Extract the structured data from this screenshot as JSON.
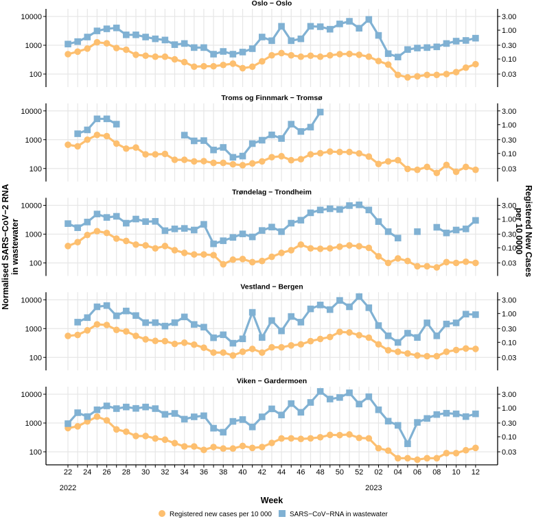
{
  "chart_data": {
    "type": "line",
    "xlabel": "Week",
    "ylabel": "Normalised SARS−CoV−2 RNA in wastewater",
    "ylabel_lines": [
      "Normalised SARS−CoV−2 RNA",
      "in wastewater"
    ],
    "y2label": "Registered New Cases per 10 0000",
    "y2label_lines": [
      "Registered New Cases",
      "per 10 0000"
    ],
    "y_scale": "log",
    "ylim": [
      40,
      15000
    ],
    "y_ticks": [
      100,
      1000,
      10000
    ],
    "y_tick_labels": [
      "100",
      "1000",
      "10000"
    ],
    "y2_ticks": [
      3,
      1,
      0.3,
      0.1,
      0.03
    ],
    "y2_tick_labels": [
      "3.00",
      "1.00",
      "0.30",
      "0.10",
      "0.03"
    ],
    "secondary_axis_ratio": 0.0003,
    "grid": true,
    "years": [
      {
        "label": "2022",
        "week_index": 0
      },
      {
        "label": "2023",
        "week_index": 31.5
      }
    ],
    "weeks": [
      "22",
      "23",
      "24",
      "25",
      "26",
      "27",
      "28",
      "29",
      "30",
      "31",
      "32",
      "33",
      "34",
      "35",
      "36",
      "37",
      "38",
      "39",
      "40",
      "41",
      "42",
      "43",
      "44",
      "45",
      "46",
      "47",
      "48",
      "49",
      "50",
      "51",
      "52",
      "01",
      "02",
      "03",
      "04",
      "05",
      "06",
      "07",
      "08",
      "09",
      "10",
      "11",
      "12"
    ],
    "legend": {
      "position": "bottom",
      "items": [
        {
          "label": "Registered new cases per 10 000",
          "color": "#FDBF6F",
          "shape": "circle"
        },
        {
          "label": "SARS−CoV−RNA in wastewater",
          "color": "#80B1D3",
          "shape": "square"
        }
      ]
    },
    "panels": [
      {
        "title": "Oslo − Oslo",
        "wastewater": [
          1100,
          1340,
          1930,
          3150,
          3720,
          4000,
          2300,
          2300,
          1930,
          1670,
          1520,
          1050,
          1150,
          830,
          830,
          490,
          610,
          490,
          580,
          760,
          1930,
          1440,
          4560,
          1440,
          1670,
          4560,
          4400,
          3600,
          5500,
          6800,
          3900,
          7900,
          2200,
          510,
          390,
          710,
          800,
          830,
          880,
          1150,
          1390,
          1470,
          1760
        ],
        "cases": [
          0.147,
          0.18,
          0.23,
          0.38,
          0.35,
          0.24,
          0.21,
          0.14,
          0.13,
          0.12,
          0.12,
          0.097,
          0.078,
          0.054,
          0.056,
          0.056,
          0.062,
          0.069,
          0.048,
          0.054,
          0.083,
          0.134,
          0.16,
          0.134,
          0.12,
          0.13,
          0.12,
          0.134,
          0.147,
          0.15,
          0.14,
          0.12,
          0.085,
          0.064,
          0.028,
          0.023,
          0.025,
          0.028,
          0.028,
          0.03,
          0.035,
          0.05,
          0.066
        ]
      },
      {
        "title": "Troms og Finnmark − Tromsø",
        "wastewater": [
          null,
          1610,
          2190,
          5300,
          5300,
          3460,
          null,
          null,
          null,
          null,
          null,
          null,
          1440,
          910,
          930,
          440,
          540,
          245,
          270,
          730,
          960,
          1470,
          1100,
          3460,
          1930,
          2730,
          9100,
          null,
          null,
          null,
          null,
          null,
          null,
          null,
          null,
          null,
          null,
          null,
          null,
          null,
          null,
          null,
          null
        ],
        "cases": [
          0.2,
          0.177,
          0.3,
          0.44,
          0.4,
          0.22,
          0.147,
          0.16,
          0.093,
          0.093,
          0.096,
          0.06,
          0.06,
          0.053,
          0.054,
          0.047,
          0.047,
          0.042,
          0.039,
          0.045,
          0.053,
          0.074,
          0.08,
          0.058,
          0.063,
          0.093,
          0.102,
          0.116,
          0.112,
          0.112,
          0.1,
          0.078,
          0.043,
          0.053,
          0.058,
          0.029,
          0.027,
          0.034,
          0.021,
          0.04,
          0.023,
          0.034,
          0.027
        ]
      },
      {
        "title": "Trøndelag − Trondheim",
        "wastewater": [
          2320,
          1670,
          2630,
          5000,
          3800,
          4160,
          2400,
          3340,
          2730,
          2780,
          1320,
          1520,
          1580,
          1390,
          2190,
          460,
          590,
          770,
          1020,
          800,
          1340,
          1760,
          1220,
          2400,
          3050,
          5500,
          6900,
          7600,
          7200,
          9800,
          10400,
          6900,
          2730,
          1220,
          730,
          null,
          1220,
          null,
          1730,
          1100,
          1390,
          1520,
          3000
        ],
        "cases": [
          0.116,
          0.158,
          0.28,
          0.38,
          0.33,
          0.21,
          0.174,
          0.13,
          0.122,
          0.096,
          0.116,
          0.083,
          0.067,
          0.059,
          0.059,
          0.056,
          0.027,
          0.039,
          0.041,
          0.032,
          0.035,
          0.049,
          0.067,
          0.083,
          0.13,
          0.096,
          0.093,
          0.096,
          0.11,
          0.122,
          0.114,
          0.1,
          0.051,
          0.03,
          0.043,
          0.035,
          0.023,
          0.023,
          0.021,
          0.032,
          0.03,
          0.033,
          0.03
        ]
      },
      {
        "title": "Vestland − Bergen",
        "wastewater": [
          null,
          1670,
          2400,
          5700,
          6300,
          2780,
          4080,
          2830,
          1610,
          1610,
          1220,
          1610,
          2540,
          1390,
          1120,
          480,
          610,
          310,
          440,
          3660,
          490,
          1900,
          830,
          2630,
          1670,
          4820,
          6600,
          4560,
          9500,
          5700,
          12900,
          5300,
          1270,
          560,
          330,
          690,
          490,
          1580,
          560,
          1440,
          1580,
          3170,
          3050
        ],
        "cases": [
          0.167,
          0.18,
          0.26,
          0.42,
          0.4,
          0.27,
          0.24,
          0.167,
          0.127,
          0.112,
          0.11,
          0.088,
          0.097,
          0.083,
          0.065,
          0.044,
          0.044,
          0.035,
          0.047,
          0.059,
          0.044,
          0.067,
          0.067,
          0.078,
          0.085,
          0.11,
          0.131,
          0.153,
          0.23,
          0.22,
          0.177,
          0.145,
          0.085,
          0.053,
          0.047,
          0.041,
          0.035,
          0.033,
          0.033,
          0.047,
          0.054,
          0.061,
          0.059
        ]
      },
      {
        "title": "Viken − Gardermoen",
        "wastewater": [
          950,
          2280,
          1670,
          2880,
          3930,
          3160,
          3600,
          3220,
          3600,
          3160,
          2000,
          2150,
          1360,
          1640,
          1790,
          660,
          480,
          1140,
          1320,
          730,
          1640,
          3100,
          1900,
          4730,
          2360,
          5180,
          12500,
          6800,
          7700,
          11200,
          4560,
          8200,
          2880,
          1160,
          830,
          190,
          1050,
          1440,
          1970,
          2190,
          2080,
          1670,
          2080
        ],
        "cases": [
          0.2,
          0.23,
          0.34,
          0.5,
          0.37,
          0.18,
          0.15,
          0.106,
          0.106,
          0.087,
          0.079,
          0.06,
          0.046,
          0.046,
          0.035,
          0.044,
          0.039,
          0.039,
          0.048,
          0.041,
          0.044,
          0.061,
          0.087,
          0.088,
          0.084,
          0.088,
          0.096,
          0.116,
          0.114,
          0.12,
          0.091,
          0.088,
          0.04,
          0.033,
          0.018,
          0.018,
          0.016,
          0.018,
          0.018,
          0.027,
          0.027,
          0.034,
          0.041
        ]
      }
    ]
  }
}
